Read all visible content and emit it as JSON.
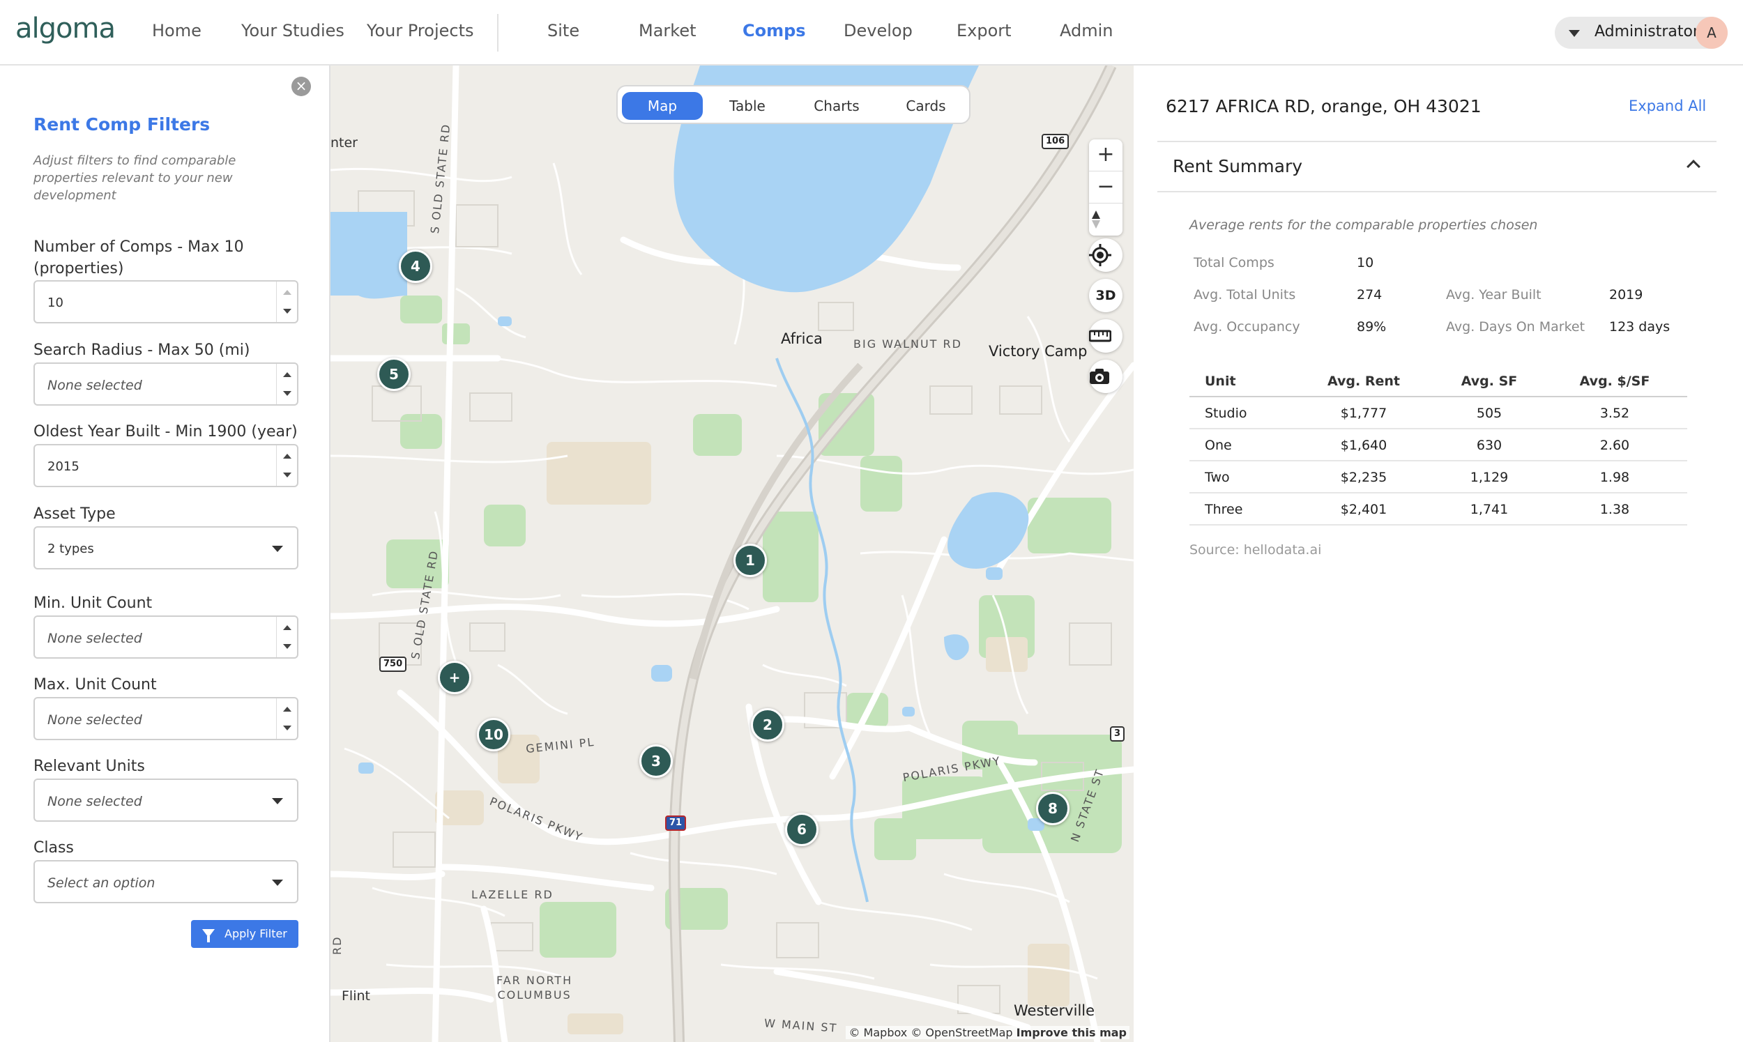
{
  "app": {
    "logo": "algoma",
    "nav": {
      "home": "Home",
      "studies": "Your Studies",
      "projects": "Your Projects",
      "site": "Site",
      "market": "Market",
      "comps": "Comps",
      "develop": "Develop",
      "export": "Export",
      "admin": "Admin"
    },
    "active_nav": "comps",
    "user": {
      "name": "Administrator",
      "initial": "A"
    }
  },
  "filters": {
    "close": "×",
    "title": "Rent Comp Filters",
    "description": "Adjust filters to find comparable properties relevant to your new development",
    "fields": {
      "num_comps": {
        "label": "Number of Comps - Max 10 (properties)",
        "value": "10"
      },
      "radius": {
        "label": "Search Radius - Max 50 (mi)",
        "placeholder": "None selected"
      },
      "oldest_year": {
        "label": "Oldest Year Built - Min 1900 (year)",
        "value": "2015"
      },
      "asset_type": {
        "label": "Asset Type",
        "value": "2 types"
      },
      "min_units": {
        "label": "Min. Unit Count",
        "placeholder": "None selected"
      },
      "max_units": {
        "label": "Max. Unit Count",
        "placeholder": "None selected"
      },
      "relevant_units": {
        "label": "Relevant Units",
        "placeholder": "None selected"
      },
      "class": {
        "label": "Class",
        "placeholder": "Select an option"
      }
    },
    "apply": "Apply Filter"
  },
  "map": {
    "view_tabs": {
      "map": "Map",
      "table": "Table",
      "charts": "Charts",
      "cards": "Cards"
    },
    "active_view": "map",
    "controls": {
      "zoom_in": "+",
      "zoom_out": "−",
      "three_d": "3D"
    },
    "pins": [
      "1",
      "2",
      "3",
      "4",
      "5",
      "6",
      "8",
      "10",
      "+"
    ],
    "places": {
      "africa": "Africa",
      "victory_camp": "Victory Camp",
      "westerville": "Westerville",
      "flint": "Flint",
      "far_north_columbus": "FAR NORTH\nCOLUMBUS",
      "center": "nter"
    },
    "roads": {
      "big_walnut": "BIG WALNUT RD",
      "polaris_pkwy": "POLARIS PKWY",
      "polaris_pkwy_2": "POLARIS PKWY",
      "gemini": "GEMINI PL",
      "lazelle": "LAZELLE RD",
      "w_main": "W MAIN ST",
      "s_old_state": "S OLD STATE RD",
      "s_old_state_2": "S OLD STATE RD",
      "n_state": "N STATE ST",
      "edge_rd": "RD"
    },
    "shields": {
      "r106": "106",
      "r750": "750",
      "r3": "3",
      "i71": "71"
    },
    "attribution": {
      "mapbox": "© Mapbox",
      "osm": "© OpenStreetMap",
      "improve": "Improve this map"
    }
  },
  "details": {
    "address": "6217 AFRICA RD, orange, OH 43021",
    "expand_all": "Expand All",
    "section_title": "Rent Summary",
    "summary_desc": "Average rents for the comparable properties chosen",
    "stats": {
      "total_comps": {
        "label": "Total Comps",
        "value": "10"
      },
      "avg_total_units": {
        "label": "Avg. Total Units",
        "value": "274"
      },
      "avg_year_built": {
        "label": "Avg. Year Built",
        "value": "2019"
      },
      "avg_occupancy": {
        "label": "Avg. Occupancy",
        "value": "89%"
      },
      "avg_days_on_market": {
        "label": "Avg. Days On Market",
        "value": "123 days"
      }
    },
    "table": {
      "headers": [
        "Unit",
        "Avg. Rent",
        "Avg. SF",
        "Avg. $/SF"
      ],
      "rows": [
        [
          "Studio",
          "$1,777",
          "505",
          "3.52"
        ],
        [
          "One",
          "$1,640",
          "630",
          "2.60"
        ],
        [
          "Two",
          "$2,235",
          "1,129",
          "1.98"
        ],
        [
          "Three",
          "$2,401",
          "1,741",
          "1.38"
        ]
      ]
    },
    "source": "Source: hellodata.ai"
  },
  "colors": {
    "accent": "#3c78e6",
    "pin": "#2e5a55",
    "water": "#a9d3f4",
    "park": "#b8dfb0"
  }
}
